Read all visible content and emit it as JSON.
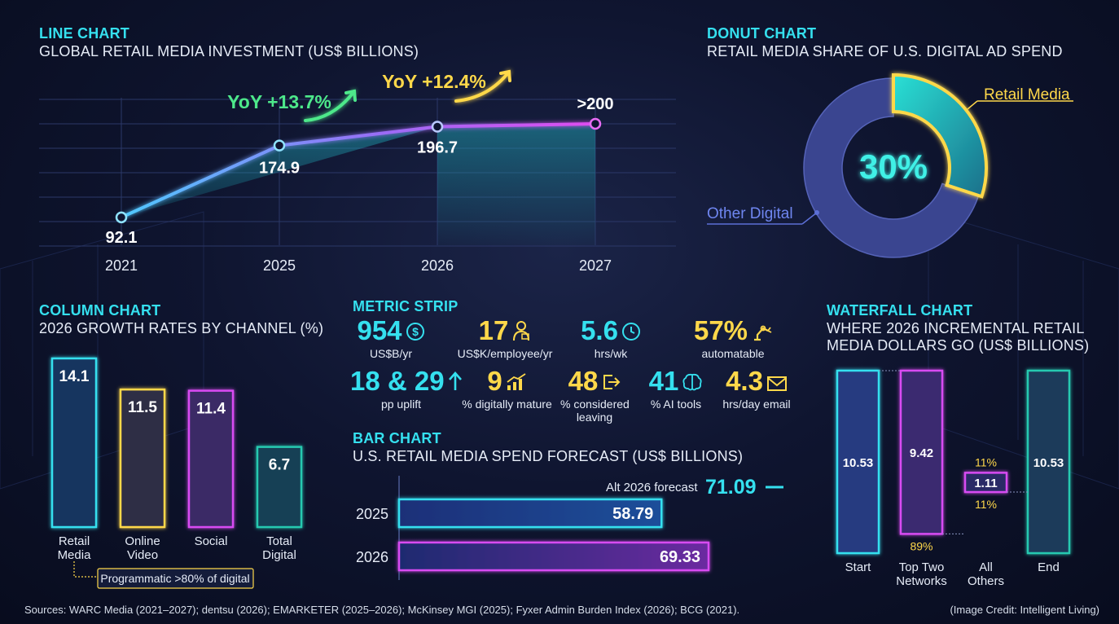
{
  "colors": {
    "cyan": "#35e0ef",
    "magenta": "#d84bf2",
    "yellow": "#ffd84a",
    "green": "#4de88a",
    "blue": "#4a6fd6",
    "teal": "#27c9b0"
  },
  "line_chart": {
    "kicker": "LINE CHART",
    "title": "GLOBAL RETAIL MEDIA INVESTMENT (US$ BILLIONS)",
    "point_labels": [
      "92.1",
      "174.9",
      "196.7",
      ">200"
    ],
    "yoy": [
      {
        "label": "YoY +13.7%",
        "color": "#4de88a"
      },
      {
        "label": "YoY +12.4%",
        "color": "#ffd84a"
      }
    ]
  },
  "donut_chart": {
    "kicker": "DONUT CHART",
    "title": "RETAIL MEDIA SHARE OF U.S. DIGITAL AD SPEND",
    "center_label": "30%",
    "segment_labels": [
      "Retail Media",
      "Other Digital"
    ]
  },
  "column_chart": {
    "kicker": "COLUMN CHART",
    "title": "2026 GROWTH RATES BY CHANNEL (%)",
    "value_labels": [
      "14.1",
      "11.5",
      "11.4",
      "6.7"
    ],
    "cat_lines": [
      [
        "Retail",
        "Media"
      ],
      [
        "Online",
        "Video"
      ],
      [
        "Social"
      ],
      [
        "Total",
        "Digital"
      ]
    ],
    "note": "Programmatic >80% of digital"
  },
  "metric_strip": {
    "kicker": "METRIC STRIP",
    "metrics": [
      {
        "value": "954",
        "label": "US$B/yr",
        "icon": "dollar-icon",
        "color": "#35e0ef"
      },
      {
        "value": "17",
        "label": "US$K/employee/yr",
        "icon": "person-icon",
        "color": "#ffd84a"
      },
      {
        "value": "5.6",
        "label": "hrs/wk",
        "icon": "clock-icon",
        "color": "#35e0ef"
      },
      {
        "value": "57%",
        "label": "automatable",
        "icon": "robot-arm-icon",
        "color": "#ffd84a"
      },
      {
        "value": "18 & 29",
        "label": "pp uplift",
        "icon": "arrow-up-icon",
        "color": "#35e0ef"
      },
      {
        "value": "9",
        "label": "% digitally mature",
        "icon": "bar-growth-icon",
        "color": "#ffd84a"
      },
      {
        "value": "48",
        "label": "% considered",
        "label2": "leaving",
        "icon": "exit-icon",
        "color": "#ffd84a"
      },
      {
        "value": "41",
        "label": "% AI tools",
        "icon": "brain-icon",
        "color": "#35e0ef"
      },
      {
        "value": "4.3",
        "label": "hrs/day email",
        "icon": "mail-icon",
        "color": "#ffd84a"
      }
    ]
  },
  "bar_chart": {
    "kicker": "BAR CHART",
    "title": "U.S. RETAIL MEDIA SPEND FORECAST (US$ BILLIONS)",
    "alt_label": "Alt 2026 forecast",
    "alt_value": "71.09",
    "years": [
      "2025",
      "2026"
    ],
    "value_labels": [
      "58.79",
      "69.33"
    ]
  },
  "waterfall_chart": {
    "kicker": "WATERFALL CHART",
    "title_lines": [
      "WHERE 2026 INCREMENTAL RETAIL",
      "MEDIA DOLLARS GO (US$ BILLIONS)"
    ],
    "value_labels": [
      "10.53",
      "9.42",
      "1.11",
      "10.53"
    ],
    "pct_labels": [
      "11%",
      "89%",
      "11%"
    ],
    "cat_lines": [
      [
        "Start"
      ],
      [
        "Top Two",
        "Networks"
      ],
      [
        "All",
        "Others"
      ],
      [
        "End"
      ]
    ]
  },
  "footer": {
    "sources": "Sources: WARC Media (2021–2027); dentsu (2026); EMARKETER (2025–2026); McKinsey MGI (2025); Fyxer Admin Burden Index (2026); BCG (2021).",
    "credit": "(Image Credit: Intelligent Living)"
  },
  "chart_data": [
    {
      "type": "line",
      "title": "GLOBAL RETAIL MEDIA INVESTMENT (US$ BILLIONS)",
      "categories": [
        "2021",
        "2025",
        "2026",
        "2027"
      ],
      "values": [
        92.1,
        174.9,
        196.7,
        200
      ],
      "annotations": [
        "YoY +13.7%",
        "YoY +12.4%"
      ],
      "ylim": [
        60,
        230
      ],
      "grid": true
    },
    {
      "type": "pie",
      "title": "RETAIL MEDIA SHARE OF U.S. DIGITAL AD SPEND",
      "categories": [
        "Retail Media",
        "Other Digital"
      ],
      "values": [
        30,
        70
      ]
    },
    {
      "type": "bar",
      "title": "2026 GROWTH RATES BY CHANNEL (%)",
      "categories": [
        "Retail Media",
        "Online Video",
        "Social",
        "Total Digital"
      ],
      "values": [
        14.1,
        11.5,
        11.4,
        6.7
      ],
      "ylim": [
        0,
        14.1
      ]
    },
    {
      "type": "bar",
      "orientation": "horizontal",
      "title": "U.S. RETAIL MEDIA SPEND FORECAST (US$ BILLIONS)",
      "categories": [
        "Alt 2026 forecast",
        "2025",
        "2026"
      ],
      "values": [
        71.09,
        58.79,
        69.33
      ],
      "xlim": [
        0,
        80
      ]
    },
    {
      "type": "bar",
      "subtype": "waterfall",
      "title": "WHERE 2026 INCREMENTAL RETAIL MEDIA DOLLARS GO (US$ BILLIONS)",
      "categories": [
        "Start",
        "Top Two Networks",
        "All Others",
        "End"
      ],
      "values": [
        10.53,
        9.42,
        1.11,
        10.53
      ],
      "shares": [
        "89%",
        "11%"
      ],
      "ylim": [
        0,
        10.53
      ]
    }
  ]
}
